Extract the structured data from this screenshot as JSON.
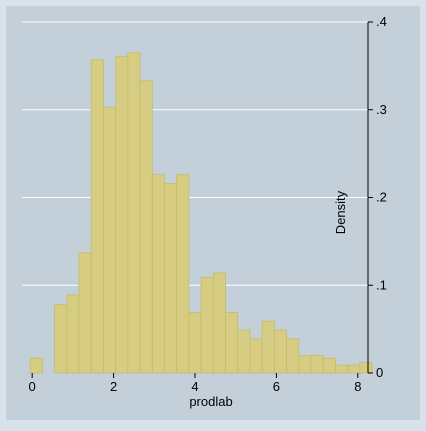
{
  "chart_data": {
    "type": "bar",
    "title": "",
    "xlabel": "prodlab",
    "ylabel": "Density",
    "xlim": [
      -0.25,
      8.25
    ],
    "ylim": [
      0,
      0.4
    ],
    "x_ticks": [
      0,
      2,
      4,
      6,
      8
    ],
    "x_tick_labels": [
      "0",
      "2",
      "4",
      "6",
      "8"
    ],
    "y_ticks": [
      0,
      0.1,
      0.2,
      0.3,
      0.4
    ],
    "y_tick_labels": [
      "0",
      ".1",
      ".2",
      ".3",
      ".4"
    ],
    "y_axis_side": "right",
    "grid": "horizontal",
    "bin_width": 0.3,
    "bins": [
      {
        "x0": -0.05,
        "x1": 0.25,
        "value": 0.017
      },
      {
        "x0": 0.25,
        "x1": 0.55,
        "value": 0.0
      },
      {
        "x0": 0.55,
        "x1": 0.85,
        "value": 0.078
      },
      {
        "x0": 0.85,
        "x1": 1.15,
        "value": 0.089
      },
      {
        "x0": 1.15,
        "x1": 1.45,
        "value": 0.137
      },
      {
        "x0": 1.45,
        "x1": 1.75,
        "value": 0.357
      },
      {
        "x0": 1.75,
        "x1": 2.05,
        "value": 0.303
      },
      {
        "x0": 2.05,
        "x1": 2.35,
        "value": 0.361
      },
      {
        "x0": 2.35,
        "x1": 2.65,
        "value": 0.365
      },
      {
        "x0": 2.65,
        "x1": 2.95,
        "value": 0.333
      },
      {
        "x0": 2.95,
        "x1": 3.25,
        "value": 0.226
      },
      {
        "x0": 3.25,
        "x1": 3.55,
        "value": 0.216
      },
      {
        "x0": 3.55,
        "x1": 3.85,
        "value": 0.226
      },
      {
        "x0": 3.85,
        "x1": 4.15,
        "value": 0.069
      },
      {
        "x0": 4.15,
        "x1": 4.45,
        "value": 0.109
      },
      {
        "x0": 4.45,
        "x1": 4.75,
        "value": 0.114
      },
      {
        "x0": 4.75,
        "x1": 5.05,
        "value": 0.069
      },
      {
        "x0": 5.05,
        "x1": 5.35,
        "value": 0.049
      },
      {
        "x0": 5.35,
        "x1": 5.65,
        "value": 0.039
      },
      {
        "x0": 5.65,
        "x1": 5.95,
        "value": 0.059
      },
      {
        "x0": 5.95,
        "x1": 6.25,
        "value": 0.049
      },
      {
        "x0": 6.25,
        "x1": 6.55,
        "value": 0.039
      },
      {
        "x0": 6.55,
        "x1": 6.85,
        "value": 0.02
      },
      {
        "x0": 6.85,
        "x1": 7.15,
        "value": 0.02
      },
      {
        "x0": 7.15,
        "x1": 7.45,
        "value": 0.017
      },
      {
        "x0": 7.45,
        "x1": 7.75,
        "value": 0.009
      },
      {
        "x0": 7.75,
        "x1": 8.05,
        "value": 0.009
      },
      {
        "x0": 8.05,
        "x1": 8.35,
        "value": 0.012
      }
    ],
    "colors": {
      "background": "#d9e2ea",
      "plot_area": "#c3d0da",
      "bar_fill": "#d6cc82",
      "bar_stroke": "#c6bb6c",
      "grid": "#ffffff"
    }
  }
}
